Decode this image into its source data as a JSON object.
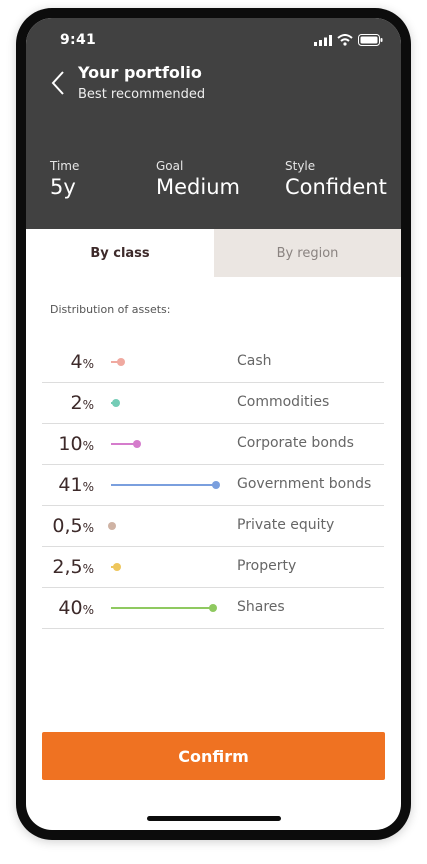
{
  "status_bar": {
    "time": "9:41"
  },
  "header": {
    "title": "Your portfolio",
    "subtitle": "Best recommended",
    "stats": [
      {
        "label": "Time",
        "value": "5y"
      },
      {
        "label": "Goal",
        "value": "Medium"
      },
      {
        "label": "Style",
        "value": "Confident"
      }
    ]
  },
  "tabs": [
    {
      "label": "By class",
      "active": true
    },
    {
      "label": "By region",
      "active": false
    }
  ],
  "distribution": {
    "label": "Distribution of assets:",
    "percent_sign": "%",
    "items": [
      {
        "name": "Cash",
        "value": "4",
        "fraction": 4,
        "color": "#f0a9a0"
      },
      {
        "name": "Commodities",
        "value": "2",
        "fraction": 2,
        "color": "#74ccb6"
      },
      {
        "name": "Corporate bonds",
        "value": "10",
        "fraction": 10,
        "color": "#d57ccc"
      },
      {
        "name": "Government bonds",
        "value": "41",
        "fraction": 41,
        "color": "#7a9fde"
      },
      {
        "name": "Private equity",
        "value": "0,5",
        "fraction": 0.5,
        "color": "#cfb3a4"
      },
      {
        "name": "Property",
        "value": "2,5",
        "fraction": 2.5,
        "color": "#eec65c"
      },
      {
        "name": "Shares",
        "value": "40",
        "fraction": 40,
        "color": "#8fc960"
      }
    ]
  },
  "footer": {
    "confirm_label": "Confirm",
    "accent_color": "#ef7222"
  }
}
